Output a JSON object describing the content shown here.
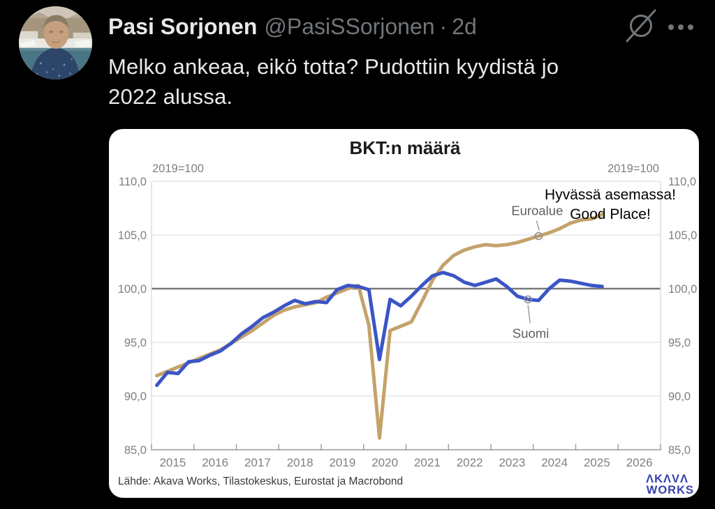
{
  "tweet": {
    "author_name": "Pasi Sorjonen",
    "handle": "@PasiSSorjonen",
    "separator": "·",
    "timestamp": "2d",
    "body_lines": [
      "Melko ankeaa, eikö totta? Pudottiin kyydistä jo",
      "2022 alussa."
    ]
  },
  "colors": {
    "background": "#000000",
    "primary_text": "#e7e9ea",
    "secondary_text": "#71767b",
    "suomi_line": "#3b55c6",
    "euroalue_line": "#c4a26b",
    "logo_blue": "#3642ad"
  },
  "chart_data": {
    "type": "line",
    "title": "BKT:n määrä",
    "index_note_left": "2019=100",
    "index_note_right": "2019=100",
    "ylim": [
      85,
      110
    ],
    "ytick_values": [
      110,
      105,
      100,
      95,
      90,
      85
    ],
    "ytick_labels": [
      "110,0",
      "105,0",
      "100,0",
      "95,0",
      "90,0",
      "85,0"
    ],
    "emphasis_value": 100,
    "grid": true,
    "x_years": [
      "2015",
      "2016",
      "2017",
      "2018",
      "2019",
      "2020",
      "2021",
      "2022",
      "2023",
      "2024",
      "2025",
      "2026"
    ],
    "x_quarter_start": 2015.0,
    "x_quarter_step": 0.25,
    "series": [
      {
        "name": "Euroalue",
        "color": "#c4a26b",
        "callout_index": 36,
        "values": [
          91.9,
          92.3,
          92.7,
          93.1,
          93.5,
          93.9,
          94.3,
          94.9,
          95.5,
          96.1,
          96.8,
          97.5,
          98.0,
          98.3,
          98.5,
          98.7,
          99.2,
          99.6,
          100.0,
          100.3,
          96.6,
          86.1,
          96.1,
          96.5,
          96.9,
          98.8,
          100.8,
          102.2,
          103.1,
          103.6,
          103.9,
          104.1,
          104.0,
          104.1,
          104.3,
          104.6,
          104.9,
          105.2,
          105.6,
          106.1,
          106.4,
          106.5,
          106.9
        ]
      },
      {
        "name": "Suomi",
        "color": "#3b55c6",
        "callout_index": 35,
        "values": [
          91.0,
          92.2,
          92.1,
          93.2,
          93.3,
          93.8,
          94.2,
          94.9,
          95.8,
          96.5,
          97.3,
          97.8,
          98.4,
          98.9,
          98.6,
          98.8,
          98.7,
          99.9,
          100.3,
          100.2,
          99.9,
          93.4,
          99.0,
          98.4,
          99.3,
          100.3,
          101.2,
          101.5,
          101.2,
          100.6,
          100.3,
          100.6,
          100.9,
          100.2,
          99.3,
          99.0,
          98.9,
          100.0,
          100.8,
          100.7,
          100.5,
          100.3,
          100.2
        ]
      }
    ],
    "annotation": {
      "line1": "Hyvässä asemassa!",
      "line2": "Good Place!"
    },
    "source": "Lähde: Akava Works, Tilastokeskus, Eurostat ja Macrobond",
    "logo": {
      "line1": "ΛKΛVΛ",
      "line2": "WORKS",
      "color": "#3642ad"
    }
  }
}
